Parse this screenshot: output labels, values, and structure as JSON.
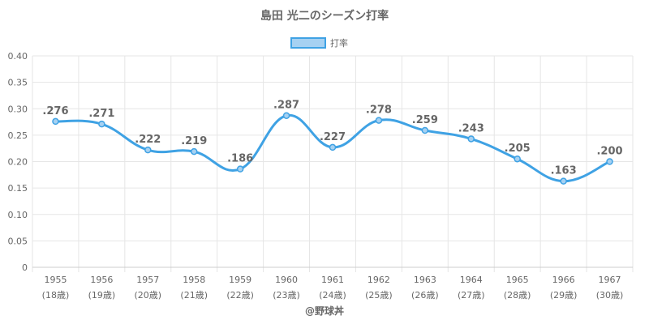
{
  "chart_data": {
    "type": "line",
    "title": "島田 光二のシーズン打率",
    "legend": {
      "label": "打率",
      "position": "top"
    },
    "categories": [
      "1955",
      "1956",
      "1957",
      "1958",
      "1959",
      "1960",
      "1961",
      "1962",
      "1963",
      "1964",
      "1965",
      "1966",
      "1967"
    ],
    "ages": [
      "(18歳)",
      "(19歳)",
      "(20歳)",
      "(21歳)",
      "(22歳)",
      "(23歳)",
      "(24歳)",
      "(25歳)",
      "(26歳)",
      "(27歳)",
      "(28歳)",
      "(29歳)",
      "(30歳)"
    ],
    "series": [
      {
        "name": "打率",
        "values": [
          0.276,
          0.271,
          0.222,
          0.219,
          0.186,
          0.287,
          0.227,
          0.278,
          0.259,
          0.243,
          0.205,
          0.163,
          0.2
        ],
        "labels": [
          ".276",
          ".271",
          ".222",
          ".219",
          ".186",
          ".287",
          ".227",
          ".278",
          ".259",
          ".243",
          ".205",
          ".163",
          ".200"
        ]
      }
    ],
    "ylim": [
      0,
      0.4
    ],
    "yticks": [
      {
        "value": 0,
        "label": "0"
      },
      {
        "value": 0.05,
        "label": "0.05"
      },
      {
        "value": 0.1,
        "label": "0.10"
      },
      {
        "value": 0.15,
        "label": "0.15"
      },
      {
        "value": 0.2,
        "label": "0.20"
      },
      {
        "value": 0.25,
        "label": "0.25"
      },
      {
        "value": 0.3,
        "label": "0.30"
      },
      {
        "value": 0.35,
        "label": "0.35"
      },
      {
        "value": 0.4,
        "label": "0.40"
      }
    ],
    "grid": true,
    "colors": {
      "line": "#3fa2e4",
      "fill": "#a6d1f2",
      "grid": "#e6e6e6",
      "text": "#666666"
    }
  },
  "credit": "@野球丼"
}
